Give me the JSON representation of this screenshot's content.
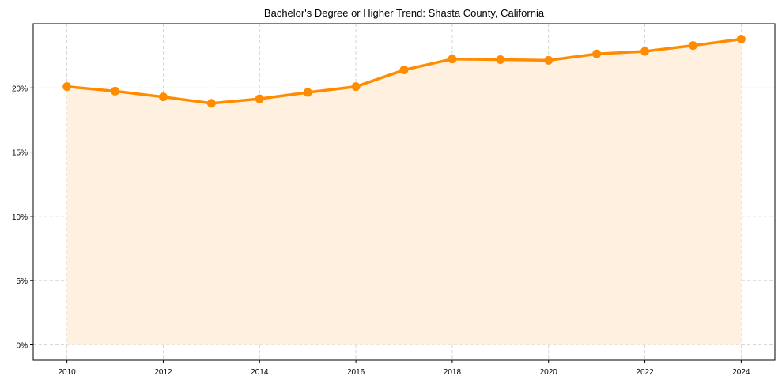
{
  "chart_data": {
    "type": "area",
    "title": "Bachelor's Degree or Higher Trend: Shasta County, California",
    "xlabel": "",
    "ylabel": "",
    "x": [
      2010,
      2011,
      2012,
      2013,
      2014,
      2015,
      2016,
      2017,
      2018,
      2019,
      2020,
      2021,
      2022,
      2023,
      2024
    ],
    "values": [
      20.1,
      19.75,
      19.3,
      18.8,
      19.15,
      19.65,
      20.1,
      21.4,
      22.25,
      22.2,
      22.15,
      22.65,
      22.85,
      23.3,
      23.8
    ],
    "xticks": [
      2010,
      2012,
      2014,
      2016,
      2018,
      2020,
      2022,
      2024
    ],
    "xtick_labels": [
      "2010",
      "2012",
      "2014",
      "2016",
      "2018",
      "2020",
      "2022",
      "2024"
    ],
    "yticks": [
      0,
      5,
      10,
      15,
      20
    ],
    "ytick_labels": [
      "0%",
      "5%",
      "10%",
      "15%",
      "20%"
    ],
    "xlim": [
      2009.3,
      2024.7
    ],
    "ylim": [
      -1.2,
      25.0
    ],
    "grid": true,
    "line_color": "#ff8c00",
    "fill_color": "#fff0e0"
  }
}
